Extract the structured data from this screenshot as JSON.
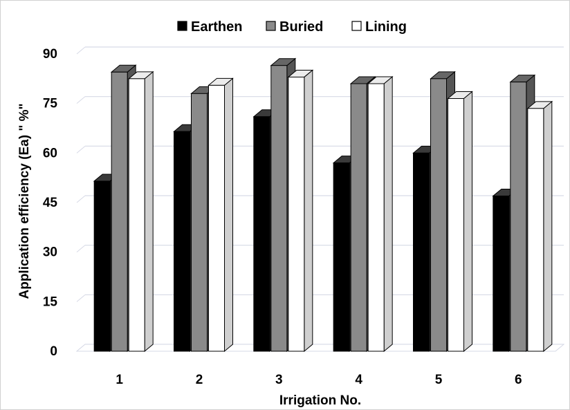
{
  "chart_data": {
    "type": "bar",
    "style": "3d-clustered-column",
    "categories": [
      "1",
      "2",
      "3",
      "4",
      "5",
      "6"
    ],
    "series": [
      {
        "name": "Earthen",
        "color": "#000000",
        "values": [
          51.5,
          66.5,
          71.0,
          57.0,
          60.0,
          47.0
        ]
      },
      {
        "name": "Buried",
        "color": "#8a8a8a",
        "values": [
          84.5,
          78.0,
          86.5,
          81.0,
          82.5,
          81.5
        ]
      },
      {
        "name": "Lining",
        "color": "#ffffff",
        "values": [
          82.5,
          80.5,
          83.0,
          81.0,
          76.5,
          73.5
        ]
      }
    ],
    "title": "",
    "xlabel": "Irrigation No.",
    "ylabel": "Application efficiency (Ea) \" %\"",
    "yticks": [
      0,
      15,
      30,
      45,
      60,
      75,
      90
    ],
    "ylim": [
      0,
      90
    ],
    "grid": true,
    "legend_position": "top-center"
  }
}
